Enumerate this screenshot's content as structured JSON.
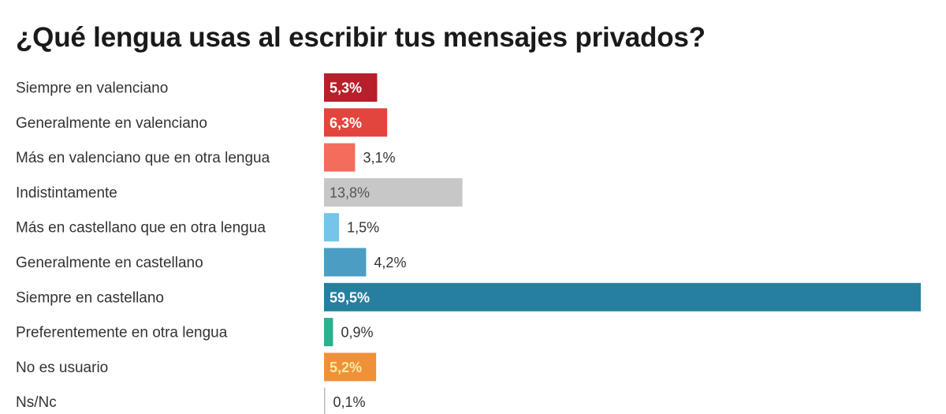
{
  "chart_data": {
    "type": "bar",
    "orientation": "horizontal",
    "title": "¿Qué lengua usas al escribir tus mensajes privados?",
    "categories": [
      "Siempre en valenciano",
      "Generalmente en valenciano",
      "Más en valenciano que en otra lengua",
      "Indistintamente",
      "Más en castellano que en otra lengua",
      "Generalmente en castellano",
      "Siempre en castellano",
      "Preferentemente en otra lengua",
      "No es usuario",
      "Ns/Nc"
    ],
    "values": [
      5.3,
      6.3,
      3.1,
      13.8,
      1.5,
      4.2,
      59.5,
      0.9,
      5.2,
      0.1
    ],
    "data_labels": [
      "5,3%",
      "6,3%",
      "3,1%",
      "13,8%",
      "1,5%",
      "4,2%",
      "59,5%",
      "0,9%",
      "5,2%",
      "0,1%"
    ],
    "colors": [
      "#b71f2b",
      "#e2453d",
      "#f36c5c",
      "#c7c7c7",
      "#77c4ea",
      "#4b9dc3",
      "#267f9f",
      "#2cb18e",
      "#ef9139",
      "#bbbbbb"
    ],
    "label_colors": [
      "#ffffff",
      "#ffffff",
      "#333333",
      "#555555",
      "#333333",
      "#333333",
      "#ffffff",
      "#333333",
      "#fbe8a6",
      "#333333"
    ],
    "xlim": [
      0,
      59.5
    ],
    "grid": false,
    "legend": "none"
  }
}
